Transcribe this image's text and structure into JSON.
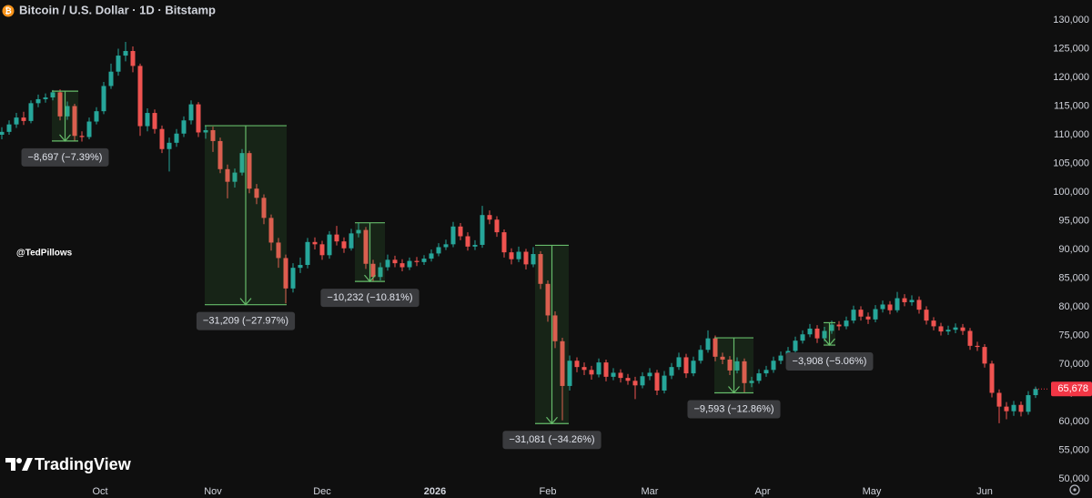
{
  "chart_data": {
    "type": "candlestick",
    "title": "Bitcoin / U.S. Dollar · 1D · Bitstamp",
    "watermark": "@TedPillows",
    "brand": "TradingView",
    "up_color": "#26a69a",
    "down_color": "#ef5350",
    "grid": false,
    "x": [
      2,
      4,
      6,
      8,
      10,
      12,
      14,
      16,
      18,
      20,
      22,
      24,
      26,
      28,
      30,
      32,
      34,
      36,
      38,
      40,
      42,
      44,
      46,
      48,
      50,
      52,
      54,
      56,
      58,
      60,
      62,
      64,
      66,
      68,
      70,
      72,
      74,
      76,
      78,
      80,
      82,
      84,
      86,
      88,
      90,
      92,
      94,
      96,
      98,
      100,
      102,
      104,
      106,
      108,
      110,
      112,
      114,
      116,
      118,
      120,
      122,
      124,
      126,
      128,
      130,
      132,
      134,
      136,
      138,
      140,
      142,
      144,
      146,
      148,
      150,
      152,
      154,
      156,
      158,
      160,
      162,
      164,
      166,
      168,
      170,
      172,
      174,
      176,
      178,
      180,
      182,
      184,
      186,
      188,
      190,
      192,
      194,
      196,
      198,
      200,
      202,
      204,
      206,
      208,
      210,
      212,
      214,
      216,
      218,
      220,
      222,
      224,
      226,
      228,
      230,
      232,
      234,
      236,
      238,
      240,
      242,
      244,
      246,
      248,
      250,
      252,
      254,
      256,
      258,
      260,
      262,
      264,
      266,
      268,
      270,
      272,
      274,
      276,
      278,
      280,
      282,
      284,
      286
    ],
    "open": [
      110000,
      110500,
      111800,
      113000,
      112400,
      115500,
      116200,
      116500,
      117400,
      113200,
      115000,
      109800,
      109600,
      112300,
      114100,
      118500,
      121000,
      123800,
      124600,
      122000,
      111500,
      113800,
      111000,
      107500,
      108600,
      110200,
      112500,
      115300,
      110400,
      110800,
      108900,
      104000,
      101800,
      103400,
      106800,
      100600,
      99000,
      95500,
      91200,
      88500,
      83200,
      86800,
      87300,
      91300,
      90900,
      89000,
      92600,
      91400,
      90200,
      92800,
      93400,
      87500,
      85200,
      86900,
      88200,
      87600,
      86900,
      88000,
      87800,
      88400,
      89300,
      90400,
      90900,
      94000,
      92300,
      90500,
      90800,
      96000,
      95200,
      93000,
      89500,
      88300,
      89600,
      87400,
      89200,
      84000,
      78500,
      74000,
      66200,
      70600,
      69500,
      69000,
      68200,
      70300,
      67800,
      68500,
      67600,
      67100,
      66300,
      67900,
      68500,
      65400,
      68000,
      69500,
      71200,
      68400,
      70600,
      72500,
      74500,
      71300,
      70800,
      68900,
      70500,
      66700,
      67100,
      68400,
      69000,
      70600,
      71500,
      72300,
      74100,
      75200,
      76200,
      74500,
      75800,
      76900,
      76600,
      77600,
      79500,
      78300,
      77800,
      79600,
      80400,
      79400,
      81500,
      80800,
      81200,
      79500,
      77600,
      76600,
      75700,
      76000,
      76400,
      75800,
      73200,
      73000,
      70100,
      65000,
      62600,
      61800,
      62900,
      61700,
      64600
    ],
    "high": [
      111300,
      112500,
      113800,
      114000,
      116000,
      117000,
      117200,
      117800,
      117900,
      115800,
      115400,
      110600,
      113000,
      114800,
      119200,
      122400,
      125000,
      126200,
      125400,
      122400,
      114600,
      114400,
      111600,
      109500,
      111000,
      113200,
      116000,
      115700,
      111600,
      111400,
      109500,
      104800,
      104100,
      107500,
      107200,
      101400,
      99600,
      96100,
      92000,
      89100,
      87600,
      88600,
      92000,
      92100,
      91500,
      93200,
      94100,
      92100,
      93600,
      94600,
      93900,
      88200,
      87700,
      89100,
      88900,
      88300,
      88600,
      88700,
      89000,
      90000,
      91100,
      91700,
      94800,
      94600,
      93000,
      91600,
      97600,
      96800,
      95800,
      93500,
      90200,
      90500,
      90100,
      90400,
      89700,
      84600,
      79200,
      74600,
      71500,
      71200,
      70300,
      69700,
      71000,
      70800,
      69300,
      69100,
      68300,
      67800,
      68600,
      69300,
      69000,
      68800,
      70200,
      72000,
      71800,
      71300,
      73300,
      75900,
      75000,
      72000,
      71400,
      71200,
      71000,
      67800,
      69100,
      69700,
      71300,
      72200,
      73000,
      74800,
      75900,
      77000,
      76800,
      76500,
      77600,
      77500,
      78300,
      80200,
      80100,
      79000,
      80300,
      81100,
      81000,
      82600,
      82200,
      82000,
      81800,
      80100,
      78200,
      77200,
      76700,
      77100,
      77000,
      76300,
      73900,
      73500,
      70600,
      65600,
      63400,
      63600,
      63500,
      65300,
      66100
    ],
    "low": [
      109200,
      110000,
      111200,
      111700,
      112000,
      114800,
      115600,
      116000,
      112500,
      112600,
      108900,
      108800,
      109200,
      111800,
      113600,
      118000,
      120300,
      122800,
      120900,
      109800,
      110600,
      110200,
      106800,
      103600,
      107900,
      109600,
      111800,
      109600,
      109300,
      107000,
      103300,
      98900,
      100800,
      102900,
      99800,
      97900,
      94400,
      89800,
      86800,
      80600,
      82500,
      85900,
      86700,
      90000,
      88200,
      88400,
      90700,
      89400,
      89800,
      92100,
      86600,
      84400,
      84600,
      86300,
      86900,
      86200,
      86400,
      87100,
      87300,
      87900,
      88800,
      89900,
      90400,
      91600,
      89800,
      89900,
      90300,
      94400,
      92200,
      88600,
      87400,
      87800,
      86500,
      86900,
      83100,
      77400,
      72800,
      60200,
      65400,
      68600,
      68100,
      67300,
      67700,
      67000,
      67200,
      66800,
      66400,
      63900,
      65800,
      67200,
      64600,
      64900,
      67400,
      69000,
      67600,
      67900,
      70100,
      72000,
      70500,
      70000,
      68100,
      68400,
      65000,
      66000,
      66600,
      67800,
      68500,
      70000,
      71000,
      71800,
      73600,
      74700,
      73700,
      74000,
      75300,
      75900,
      76100,
      77100,
      77600,
      77000,
      77300,
      79000,
      78700,
      79000,
      80100,
      80200,
      78800,
      76900,
      75900,
      75000,
      75100,
      75400,
      75100,
      72500,
      72300,
      69400,
      64200,
      59700,
      60400,
      61000,
      60900,
      61200,
      64100
    ],
    "close": [
      110500,
      111800,
      113000,
      112400,
      115500,
      116200,
      116500,
      117400,
      113200,
      115000,
      109800,
      109600,
      112300,
      114100,
      118500,
      121000,
      123800,
      124600,
      122000,
      111500,
      113800,
      111000,
      107500,
      108600,
      110200,
      112500,
      115300,
      110400,
      110800,
      108900,
      104000,
      101800,
      103400,
      106800,
      100600,
      99000,
      95500,
      91200,
      88500,
      83200,
      86800,
      87300,
      91300,
      90900,
      89000,
      92600,
      91400,
      90200,
      92800,
      93400,
      87500,
      85200,
      86900,
      88200,
      87600,
      86900,
      88000,
      87800,
      88400,
      89300,
      90400,
      90900,
      94000,
      92300,
      90500,
      90800,
      96000,
      95200,
      93000,
      89500,
      88300,
      89600,
      87400,
      89200,
      84000,
      78500,
      74000,
      66200,
      70600,
      69500,
      69000,
      68200,
      70300,
      67800,
      68500,
      67600,
      67100,
      66300,
      67900,
      68500,
      65400,
      68000,
      69500,
      71200,
      68400,
      70600,
      72500,
      74500,
      71300,
      70800,
      68900,
      70500,
      66700,
      67100,
      68400,
      69000,
      70600,
      71500,
      72300,
      74100,
      75200,
      76200,
      74500,
      75800,
      76900,
      76600,
      77600,
      79500,
      78300,
      77800,
      79600,
      80400,
      79400,
      81500,
      80800,
      81200,
      79500,
      77600,
      76600,
      75700,
      76000,
      76400,
      75800,
      73200,
      73000,
      70100,
      65000,
      62600,
      61800,
      62900,
      61700,
      64600,
      65678
    ],
    "price_label": "65,678",
    "price_label_color": "#f23645",
    "xlim": [
      1.5,
      289.5
    ],
    "xticks": [
      {
        "value": 29,
        "label": "Oct"
      },
      {
        "value": 60,
        "label": "Nov"
      },
      {
        "value": 90,
        "label": "Dec"
      },
      {
        "value": 121,
        "label": "2026"
      },
      {
        "value": 152,
        "label": "Feb"
      },
      {
        "value": 180,
        "label": "Mar"
      },
      {
        "value": 211,
        "label": "Apr"
      },
      {
        "value": 241,
        "label": "May"
      },
      {
        "value": 272,
        "label": "Jun"
      }
    ],
    "ylim": [
      50000,
      130000
    ],
    "yticks": [
      {
        "value": 50000,
        "label": "50,000"
      },
      {
        "value": 55000,
        "label": "55,000"
      },
      {
        "value": 60000,
        "label": "60,000"
      },
      {
        "value": 65000,
        "label": "65,000"
      },
      {
        "value": 70000,
        "label": "70,000"
      },
      {
        "value": 75000,
        "label": "75,000"
      },
      {
        "value": 80000,
        "label": "80,000"
      },
      {
        "value": 85000,
        "label": "85,000"
      },
      {
        "value": 90000,
        "label": "90,000"
      },
      {
        "value": 95000,
        "label": "95,000"
      },
      {
        "value": 100000,
        "label": "100,000"
      },
      {
        "value": 105000,
        "label": "105,000"
      },
      {
        "value": 110000,
        "label": "110,000"
      },
      {
        "value": 115000,
        "label": "115,000"
      },
      {
        "value": 120000,
        "label": "120,000"
      },
      {
        "value": 125000,
        "label": "125,000"
      },
      {
        "value": 130000,
        "label": "130,000"
      }
    ],
    "measures": [
      {
        "x": [
          15.75,
          23
        ],
        "from": 117600,
        "to": 108903,
        "label": "−8,697 (−7.39%)"
      },
      {
        "x": [
          57.75,
          80.25
        ],
        "from": 111580,
        "to": 80371,
        "label": "−31,209 (−27.97%)"
      },
      {
        "x": [
          99,
          107.25
        ],
        "from": 94653,
        "to": 84421,
        "label": "−10,232 (−10.81%)"
      },
      {
        "x": [
          148.5,
          157.75
        ],
        "from": 90721,
        "to": 59640,
        "label": "−31,081 (−34.26%)"
      },
      {
        "x": [
          197.75,
          208.5
        ],
        "from": 74596,
        "to": 65003,
        "label": "−9,593 (−12.86%)"
      },
      {
        "x": [
          227.75,
          231
        ],
        "from": 77233,
        "to": 73325,
        "label": "−3,908 (−5.06%)"
      }
    ]
  }
}
